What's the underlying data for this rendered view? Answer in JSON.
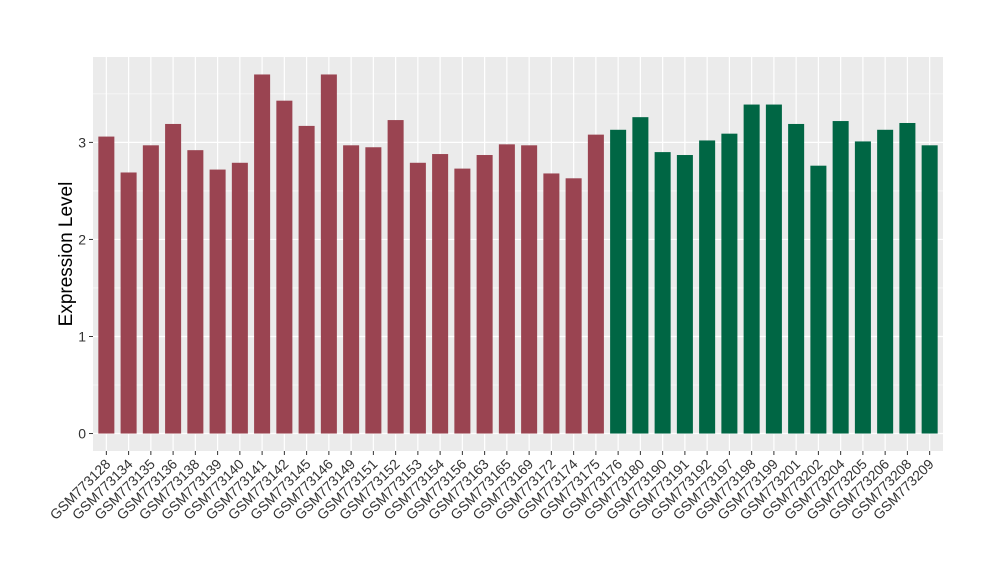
{
  "chart_data": {
    "type": "bar",
    "ylabel": "Expression Level",
    "xlabel": "",
    "title": "",
    "ylim": [
      -0.18,
      3.88
    ],
    "yticks": [
      0,
      1,
      2,
      3
    ],
    "grid": true,
    "colors": {
      "group1": "#9a4451",
      "group2": "#006644",
      "panel": "#ebebeb",
      "grid": "#ffffff"
    },
    "categories": [
      "GSM773128",
      "GSM773134",
      "GSM773135",
      "GSM773136",
      "GSM773138",
      "GSM773139",
      "GSM773140",
      "GSM773141",
      "GSM773142",
      "GSM773145",
      "GSM773146",
      "GSM773149",
      "GSM773151",
      "GSM773152",
      "GSM773153",
      "GSM773154",
      "GSM773156",
      "GSM773163",
      "GSM773165",
      "GSM773169",
      "GSM773172",
      "GSM773174",
      "GSM773175",
      "GSM773176",
      "GSM773180",
      "GSM773190",
      "GSM773191",
      "GSM773192",
      "GSM773197",
      "GSM773198",
      "GSM773199",
      "GSM773201",
      "GSM773202",
      "GSM773204",
      "GSM773205",
      "GSM773206",
      "GSM773208",
      "GSM773209"
    ],
    "values": [
      3.06,
      2.69,
      2.97,
      3.19,
      2.92,
      2.72,
      2.79,
      3.7,
      3.43,
      3.17,
      3.7,
      2.97,
      2.95,
      3.23,
      2.79,
      2.88,
      2.73,
      2.87,
      2.98,
      2.97,
      2.68,
      2.63,
      3.08,
      3.13,
      3.26,
      2.9,
      2.87,
      3.02,
      3.09,
      3.39,
      3.39,
      3.19,
      2.76,
      3.22,
      3.01,
      3.13,
      3.2,
      2.97
    ],
    "groups": [
      1,
      1,
      1,
      1,
      1,
      1,
      1,
      1,
      1,
      1,
      1,
      1,
      1,
      1,
      1,
      1,
      1,
      1,
      1,
      1,
      1,
      1,
      1,
      2,
      2,
      2,
      2,
      2,
      2,
      2,
      2,
      2,
      2,
      2,
      2,
      2,
      2,
      2
    ]
  }
}
